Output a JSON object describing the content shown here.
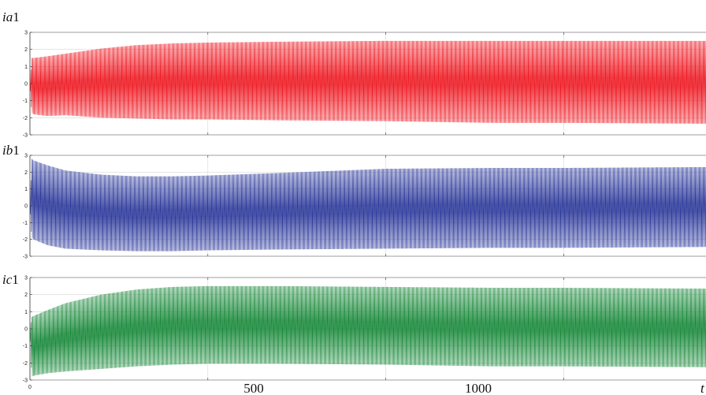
{
  "chart_data": [
    {
      "type": "line",
      "label_italic": "ia",
      "label_suffix": "1",
      "color": "#ee1c25",
      "x_range": [
        0,
        1900
      ],
      "ylim": [
        -3,
        3
      ],
      "yticks": [
        "3",
        "2",
        "1",
        "0",
        "-1",
        "-2",
        "-3"
      ],
      "grid": true,
      "series": [
        {
          "x": [
            0,
            5,
            10,
            50,
            100,
            200,
            300,
            400,
            500,
            700,
            1000,
            1300,
            1500,
            1900
          ],
          "upper": [
            0,
            1.5,
            1.5,
            1.6,
            1.75,
            2.05,
            2.25,
            2.35,
            2.4,
            2.45,
            2.5,
            2.5,
            2.5,
            2.5
          ],
          "lower": [
            0,
            -1.7,
            -1.8,
            -1.9,
            -1.85,
            -2.0,
            -2.05,
            -2.1,
            -2.1,
            -2.15,
            -2.2,
            -2.3,
            -2.3,
            -2.35
          ]
        }
      ]
    },
    {
      "type": "line",
      "label_italic": "ib",
      "label_suffix": "1",
      "color": "#2e3b9b",
      "x_range": [
        0,
        1900
      ],
      "ylim": [
        -3,
        3
      ],
      "yticks": [
        "3",
        "2",
        "1",
        "0",
        "-1",
        "-2",
        "-3"
      ],
      "grid": true,
      "series": [
        {
          "x": [
            0,
            5,
            10,
            50,
            100,
            200,
            300,
            400,
            500,
            700,
            1000,
            1300,
            1500,
            1900
          ],
          "upper": [
            0,
            2.8,
            2.7,
            2.4,
            2.1,
            1.85,
            1.75,
            1.75,
            1.8,
            1.95,
            2.2,
            2.25,
            2.25,
            2.3
          ],
          "lower": [
            0,
            -1.9,
            -2.0,
            -2.35,
            -2.55,
            -2.65,
            -2.7,
            -2.7,
            -2.65,
            -2.6,
            -2.55,
            -2.5,
            -2.5,
            -2.45
          ]
        }
      ]
    },
    {
      "type": "line",
      "label_italic": "ic",
      "label_suffix": "1",
      "color": "#1b8a3c",
      "x_range": [
        0,
        1900
      ],
      "ylim": [
        -3,
        3
      ],
      "yticks": [
        "3",
        "2",
        "1",
        "0",
        "-1",
        "-2",
        "-3"
      ],
      "grid": true,
      "xticks": [
        {
          "value": 0,
          "label": "0"
        },
        {
          "value": 500,
          "label": "500"
        },
        {
          "value": 1000,
          "label": "1000"
        }
      ],
      "x_unit_label": "t",
      "series": [
        {
          "x": [
            0,
            5,
            10,
            50,
            100,
            200,
            300,
            400,
            500,
            700,
            1000,
            1300,
            1500,
            1900
          ],
          "upper": [
            0,
            0.7,
            0.75,
            1.1,
            1.5,
            2.0,
            2.3,
            2.45,
            2.5,
            2.5,
            2.45,
            2.4,
            2.4,
            2.35
          ],
          "lower": [
            0,
            -2.8,
            -2.75,
            -2.6,
            -2.5,
            -2.35,
            -2.2,
            -2.1,
            -2.05,
            -2.05,
            -2.1,
            -2.2,
            -2.2,
            -2.25
          ]
        }
      ]
    }
  ]
}
